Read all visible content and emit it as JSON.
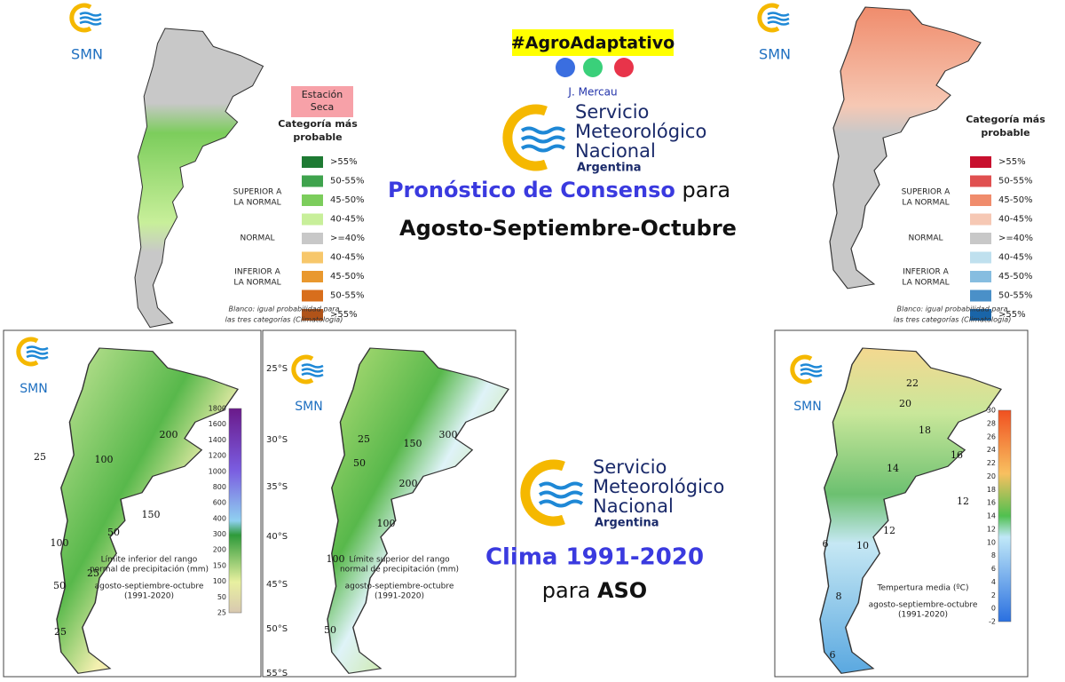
{
  "logo_text": "SMN",
  "agency": {
    "lines": [
      "Servicio",
      "Meteorológico",
      "Nacional"
    ],
    "country": "Argentina"
  },
  "header": {
    "hashtag": "#AgroAdaptativo",
    "author": "J. Mercau"
  },
  "forecast": {
    "title_highlight": "Pronóstico de Consenso",
    "title_rest": "para",
    "period": "Agosto-Septiembre-Octubre"
  },
  "climate": {
    "title_highlight": "Clima 1991-2020",
    "title_rest": "para",
    "period": "ASO"
  },
  "forecast_maps": [
    {
      "badge": [
        "Estación",
        "Seca"
      ],
      "legend_title": [
        "Categoría más",
        "probable"
      ],
      "categories": [
        {
          "label": ">55%",
          "color": "#1e7a33"
        },
        {
          "label": "50-55%",
          "color": "#3fa34d"
        },
        {
          "label": "45-50%",
          "color": "#7ccd5c"
        },
        {
          "label": "40-45%",
          "color": "#c8ef9a"
        },
        {
          "label": ">=40%",
          "color": "#c8c8c8"
        },
        {
          "label": "40-45%",
          "color": "#f7c76b"
        },
        {
          "label": "45-50%",
          "color": "#e9982e"
        },
        {
          "label": "50-55%",
          "color": "#d86e1c"
        },
        {
          "label": ">55%",
          "color": "#b05319"
        }
      ],
      "groups": [
        [
          "SUPERIOR A",
          "LA NORMAL"
        ],
        [
          "NORMAL"
        ],
        [
          "INFERIOR A",
          "LA NORMAL"
        ]
      ],
      "note": [
        "Blanco: igual probabilidad para",
        "las tres categorías (Climatología)"
      ]
    },
    {
      "legend_title": [
        "Categoría más",
        "probable"
      ],
      "categories": [
        {
          "label": ">55%",
          "color": "#c8102e"
        },
        {
          "label": "50-55%",
          "color": "#e05050"
        },
        {
          "label": "45-50%",
          "color": "#f08c6c"
        },
        {
          "label": "40-45%",
          "color": "#f6c8b4"
        },
        {
          "label": ">=40%",
          "color": "#c8c8c8"
        },
        {
          "label": "40-45%",
          "color": "#bfe0ee"
        },
        {
          "label": "45-50%",
          "color": "#86bde0"
        },
        {
          "label": "50-55%",
          "color": "#4a90c8"
        },
        {
          "label": ">55%",
          "color": "#1a65a8"
        }
      ],
      "groups": [
        [
          "SUPERIOR A",
          "LA NORMAL"
        ],
        [
          "NORMAL"
        ],
        [
          "INFERIOR A",
          "LA NORMAL"
        ]
      ],
      "note": [
        "Blanco: igual probabilidad para",
        "las tres categorías (Climatología)"
      ]
    }
  ],
  "climate_maps": [
    {
      "colorbar": [
        1800,
        1600,
        1400,
        1200,
        1000,
        800,
        600,
        400,
        300,
        200,
        150,
        100,
        50,
        25
      ],
      "contours": [
        25,
        100,
        200,
        50,
        150,
        100,
        50,
        25,
        25
      ],
      "caption": [
        "Límite inferior del rango",
        "normal de precipitación (mm)",
        "agosto-septiembre-octubre",
        "(1991-2020)"
      ]
    },
    {
      "latitudes": [
        "25°S",
        "30°S",
        "35°S",
        "40°S",
        "45°S",
        "50°S",
        "55°S"
      ],
      "contours": [
        25,
        50,
        150,
        300,
        200,
        100,
        100,
        50
      ],
      "caption": [
        "Límite superior del rango",
        "normal de precipitación (mm)",
        "agosto-septiembre-octubre",
        "(1991-2020)"
      ]
    },
    {
      "colorbar": [
        30,
        28,
        26,
        24,
        22,
        20,
        18,
        16,
        14,
        12,
        10,
        8,
        6,
        4,
        2,
        0,
        -2
      ],
      "contours": [
        22,
        20,
        18,
        16,
        14,
        12,
        12,
        10,
        6,
        8,
        6
      ],
      "caption": [
        "Tempertura media (ºC)",
        "agosto-septiembre-octubre",
        "(1991-2020)"
      ]
    }
  ]
}
